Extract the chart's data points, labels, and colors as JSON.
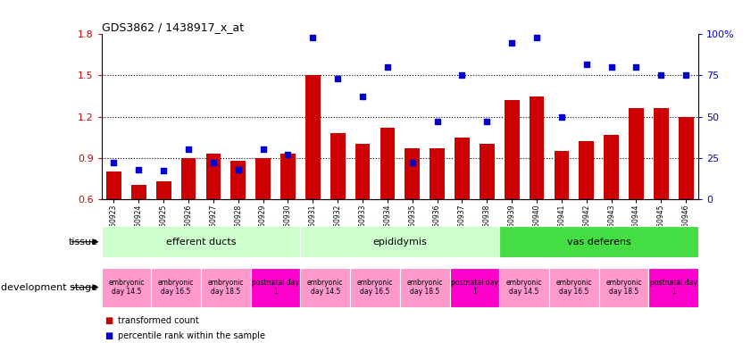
{
  "title": "GDS3862 / 1438917_x_at",
  "samples": [
    "GSM560923",
    "GSM560924",
    "GSM560925",
    "GSM560926",
    "GSM560927",
    "GSM560928",
    "GSM560929",
    "GSM560930",
    "GSM560931",
    "GSM560932",
    "GSM560933",
    "GSM560934",
    "GSM560935",
    "GSM560936",
    "GSM560937",
    "GSM560938",
    "GSM560939",
    "GSM560940",
    "GSM560941",
    "GSM560942",
    "GSM560943",
    "GSM560944",
    "GSM560945",
    "GSM560946"
  ],
  "bar_values": [
    0.8,
    0.7,
    0.73,
    0.9,
    0.93,
    0.88,
    0.9,
    0.93,
    1.5,
    1.08,
    1.0,
    1.12,
    0.97,
    0.97,
    1.05,
    1.0,
    1.32,
    1.35,
    0.95,
    1.02,
    1.07,
    1.26,
    1.26,
    1.2
  ],
  "percentile_values": [
    22,
    18,
    17,
    30,
    22,
    18,
    30,
    27,
    98,
    73,
    62,
    80,
    22,
    47,
    75,
    47,
    95,
    98,
    50,
    82,
    80,
    80,
    75,
    75
  ],
  "ylim": [
    0.6,
    1.8
  ],
  "yticks_left": [
    0.6,
    0.9,
    1.2,
    1.5,
    1.8
  ],
  "yticks_right": [
    0,
    25,
    50,
    75,
    100
  ],
  "bar_color": "#CC0000",
  "scatter_color": "#0000CC",
  "tissue_groups": [
    {
      "label": "efferent ducts",
      "start": 0,
      "end": 7,
      "color": "#CCFFCC"
    },
    {
      "label": "epididymis",
      "start": 8,
      "end": 15,
      "color": "#CCFFCC"
    },
    {
      "label": "vas deferens",
      "start": 16,
      "end": 23,
      "color": "#44DD44"
    }
  ],
  "dev_stage_groups": [
    {
      "label": "embryonic\nday 14.5",
      "start": 0,
      "end": 1,
      "color": "#FF99CC"
    },
    {
      "label": "embryonic\nday 16.5",
      "start": 2,
      "end": 3,
      "color": "#FF99CC"
    },
    {
      "label": "embryonic\nday 18.5",
      "start": 4,
      "end": 5,
      "color": "#FF99CC"
    },
    {
      "label": "postnatal day\n1",
      "start": 6,
      "end": 7,
      "color": "#FF00CC"
    },
    {
      "label": "embryonic\nday 14.5",
      "start": 8,
      "end": 9,
      "color": "#FF99CC"
    },
    {
      "label": "embryonic\nday 16.5",
      "start": 10,
      "end": 11,
      "color": "#FF99CC"
    },
    {
      "label": "embryonic\nday 18.5",
      "start": 12,
      "end": 13,
      "color": "#FF99CC"
    },
    {
      "label": "postnatal day\n1",
      "start": 14,
      "end": 15,
      "color": "#FF00CC"
    },
    {
      "label": "embryonic\nday 14.5",
      "start": 16,
      "end": 17,
      "color": "#FF99CC"
    },
    {
      "label": "embryonic\nday 16.5",
      "start": 18,
      "end": 19,
      "color": "#FF99CC"
    },
    {
      "label": "embryonic\nday 18.5",
      "start": 20,
      "end": 21,
      "color": "#FF99CC"
    },
    {
      "label": "postnatal day\n1",
      "start": 22,
      "end": 23,
      "color": "#FF00CC"
    }
  ],
  "legend_items": [
    {
      "label": "transformed count",
      "color": "#CC0000"
    },
    {
      "label": "percentile rank within the sample",
      "color": "#0000CC"
    }
  ],
  "tissue_label": "tissue",
  "dev_stage_label": "development stage",
  "hlines": [
    0.9,
    1.2,
    1.5
  ],
  "background_color": "#FFFFFF"
}
